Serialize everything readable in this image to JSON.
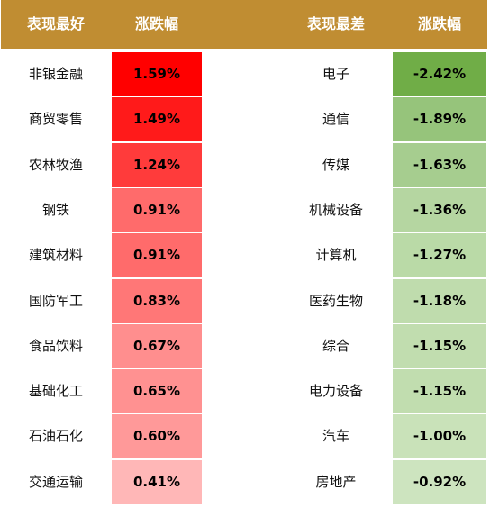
{
  "header": {
    "best_title": "表现最好",
    "best_change": "涨跌幅",
    "worst_title": "表现最差",
    "worst_change": "涨跌幅"
  },
  "colors": {
    "header_bg": "#c08d32",
    "header_text": "#ffffff"
  },
  "rows": [
    {
      "best_name": "非银金融",
      "best_value": "1.59%",
      "best_color": "#ff0000",
      "worst_name": "电子",
      "worst_value": "-2.42%",
      "worst_color": "#70ad47"
    },
    {
      "best_name": "商贸零售",
      "best_value": "1.49%",
      "best_color": "#ff1a1a",
      "worst_name": "通信",
      "worst_value": "-1.89%",
      "worst_color": "#96c47b"
    },
    {
      "best_name": "农林牧渔",
      "best_value": "1.24%",
      "best_color": "#ff3b3b",
      "worst_name": "传媒",
      "worst_value": "-1.63%",
      "worst_color": "#a6cd8f"
    },
    {
      "best_name": "钢铁",
      "best_value": "0.91%",
      "best_color": "#ff6b6b",
      "worst_name": "机械设备",
      "worst_value": "-1.36%",
      "worst_color": "#b5d6a1"
    },
    {
      "best_name": "建筑材料",
      "best_value": "0.91%",
      "best_color": "#ff6b6b",
      "worst_name": "计算机",
      "worst_value": "-1.27%",
      "worst_color": "#badaa7"
    },
    {
      "best_name": "国防军工",
      "best_value": "0.83%",
      "best_color": "#ff7777",
      "worst_name": "医药生物",
      "worst_value": "-1.18%",
      "worst_color": "#bfdcad"
    },
    {
      "best_name": "食品饮料",
      "best_value": "0.67%",
      "best_color": "#ff8e8e",
      "worst_name": "综合",
      "worst_value": "-1.15%",
      "worst_color": "#c1ddaf"
    },
    {
      "best_name": "基础化工",
      "best_value": "0.65%",
      "best_color": "#ff9191",
      "worst_name": "电力设备",
      "worst_value": "-1.15%",
      "worst_color": "#c1ddaf"
    },
    {
      "best_name": "石油石化",
      "best_value": "0.60%",
      "best_color": "#ff9999",
      "worst_name": "汽车",
      "worst_value": "-1.00%",
      "worst_color": "#c9e2b9"
    },
    {
      "best_name": "交通运输",
      "best_value": "0.41%",
      "best_color": "#ffb7b7",
      "worst_name": "房地产",
      "worst_value": "-0.92%",
      "worst_color": "#cde4bf"
    }
  ]
}
